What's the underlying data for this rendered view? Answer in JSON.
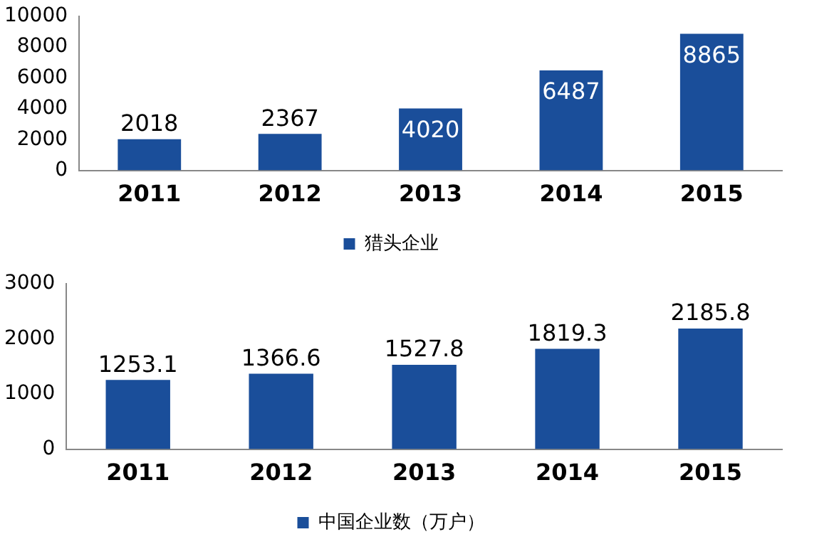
{
  "chart_data": [
    {
      "type": "bar",
      "categories": [
        "2011",
        "2012",
        "2013",
        "2014",
        "2015"
      ],
      "series": [
        {
          "name": "猎头企业",
          "color": "#1a4e9a",
          "values": [
            2018,
            2367,
            4020,
            6487,
            8865
          ]
        }
      ],
      "ylim": [
        0,
        10000
      ],
      "yticks": [
        0,
        2000,
        4000,
        6000,
        8000,
        10000
      ],
      "grid": false,
      "legend": "bottom",
      "data_labels": true
    },
    {
      "type": "bar",
      "categories": [
        "2011",
        "2012",
        "2013",
        "2014",
        "2015"
      ],
      "series": [
        {
          "name": "中国企业数（万户）",
          "color": "#1a4e9a",
          "values": [
            1253.1,
            1366.6,
            1527.8,
            1819.3,
            2185.8
          ]
        }
      ],
      "ylim": [
        0,
        3000
      ],
      "yticks": [
        0,
        1000,
        2000,
        3000
      ],
      "grid": false,
      "legend": "bottom",
      "data_labels": true
    }
  ]
}
